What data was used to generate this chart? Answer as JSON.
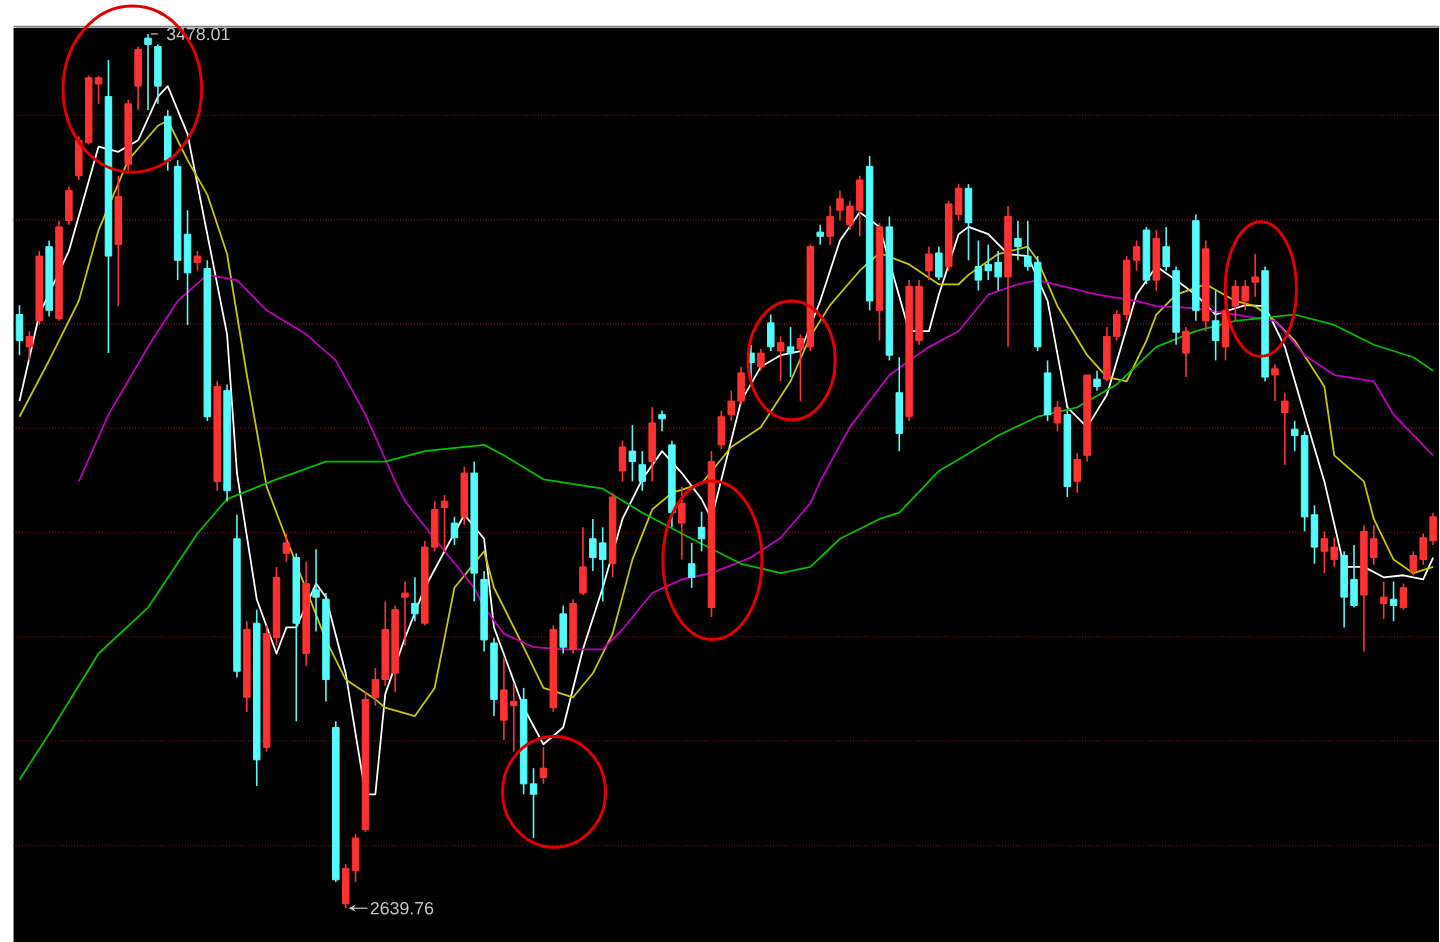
{
  "chart_data": {
    "type": "candlestick",
    "categories": [
      null,
      null,
      null,
      null,
      null,
      null,
      null,
      null,
      null,
      null,
      null,
      null,
      null,
      null,
      null,
      null,
      null,
      null,
      null,
      null,
      null,
      null,
      null,
      null,
      null,
      null,
      null,
      null,
      null,
      null,
      null,
      null,
      null,
      null,
      null,
      null,
      null,
      null,
      null,
      null,
      null,
      null,
      null,
      null,
      null,
      null,
      null,
      null,
      null,
      null,
      null,
      null,
      null,
      null,
      null,
      null,
      null,
      null,
      null,
      null,
      null,
      null,
      null,
      null,
      null,
      null,
      null,
      null,
      null,
      null,
      null,
      null,
      null,
      null,
      null,
      null,
      null,
      null,
      null,
      null,
      null,
      null,
      null,
      null,
      null,
      null,
      null,
      null,
      null,
      null,
      null,
      null,
      null,
      null,
      null,
      null,
      null,
      null,
      null,
      null,
      null,
      null,
      null,
      null,
      null,
      null,
      null,
      null,
      null,
      null,
      null,
      null,
      null,
      null,
      null,
      null,
      null,
      null,
      null,
      null,
      null,
      null,
      null,
      null,
      null,
      null,
      null,
      null,
      null,
      null,
      null,
      null,
      null,
      null,
      null,
      null,
      null,
      null,
      null,
      null,
      null,
      null,
      null,
      null
    ],
    "ohlc": [
      [
        3209,
        3218,
        3170,
        3184
      ],
      [
        3178,
        3193,
        3165,
        3188
      ],
      [
        3203,
        3270,
        3199,
        3265
      ],
      [
        3274,
        3280,
        3207,
        3213
      ],
      [
        3205,
        3299,
        3203,
        3293
      ],
      [
        3299,
        3332,
        3295,
        3328
      ],
      [
        3342,
        3380,
        3338,
        3376
      ],
      [
        3374,
        3438,
        3372,
        3436
      ],
      [
        3430,
        3438,
        3411,
        3436
      ],
      [
        3418,
        3453,
        3172,
        3265
      ],
      [
        3276,
        3342,
        3217,
        3322
      ],
      [
        3353,
        3415,
        3347,
        3411
      ],
      [
        3428,
        3466,
        3405,
        3463
      ],
      [
        3474,
        3478.01,
        3405,
        3468
      ],
      [
        3466,
        3468,
        3411,
        3428
      ],
      [
        3399,
        3405,
        3347,
        3357
      ],
      [
        3351,
        3357,
        3242,
        3261
      ],
      [
        3286,
        3309,
        3199,
        3249
      ],
      [
        3259,
        3270,
        3251,
        3265
      ],
      [
        3253,
        3261,
        3107,
        3111
      ],
      [
        3049,
        3145,
        3040,
        3140
      ],
      [
        3136,
        3142,
        3030,
        3040
      ],
      [
        2994,
        3017,
        2861,
        2867
      ],
      [
        2842,
        2915,
        2828,
        2907
      ],
      [
        2913,
        2926,
        2757,
        2782
      ],
      [
        2794,
        2911,
        2790,
        2903
      ],
      [
        2899,
        2967,
        2892,
        2957
      ],
      [
        2980,
        2999,
        2972,
        2990
      ],
      [
        2976,
        2980,
        2819,
        2913
      ],
      [
        2884,
        2972,
        2872,
        2951
      ],
      [
        2945,
        2984,
        2905,
        2938
      ],
      [
        2936,
        2942,
        2838,
        2859
      ],
      [
        2813,
        2819,
        2665,
        2667
      ],
      [
        2644,
        2682,
        2639.76,
        2678
      ],
      [
        2676,
        2711,
        2665,
        2707
      ],
      [
        2715,
        2847,
        2713,
        2840
      ],
      [
        2842,
        2870,
        2834,
        2859
      ],
      [
        2859,
        2934,
        2853,
        2907
      ],
      [
        2865,
        2930,
        2847,
        2926
      ],
      [
        2938,
        2953,
        2892,
        2942
      ],
      [
        2932,
        2957,
        2915,
        2922
      ],
      [
        2913,
        2992,
        2911,
        2986
      ],
      [
        2986,
        3030,
        2982,
        3022
      ],
      [
        3024,
        3036,
        2982,
        3030
      ],
      [
        3009,
        3015,
        2988,
        2995
      ],
      [
        3015,
        3063,
        3007,
        3057
      ],
      [
        3057,
        3068,
        2934,
        2961
      ],
      [
        2955,
        2963,
        2886,
        2897
      ],
      [
        2894,
        2899,
        2824,
        2840
      ],
      [
        2820,
        2880,
        2801,
        2849
      ],
      [
        2834,
        2855,
        2790,
        2838
      ],
      [
        2840,
        2851,
        2749,
        2759
      ],
      [
        2759,
        2774,
        2707,
        2749
      ],
      [
        2765,
        2794,
        2759,
        2774
      ],
      [
        2832,
        2911,
        2828,
        2907
      ],
      [
        2922,
        2930,
        2884,
        2890
      ],
      [
        2888,
        2936,
        2884,
        2932
      ],
      [
        2942,
        3005,
        2940,
        2967
      ],
      [
        2994,
        3013,
        2963,
        2976
      ],
      [
        2990,
        3005,
        2934,
        2974
      ],
      [
        2970,
        3038,
        2957,
        3034
      ],
      [
        3059,
        3088,
        3049,
        3082
      ],
      [
        3078,
        3103,
        3049,
        3068
      ],
      [
        3065,
        3078,
        3040,
        3049
      ],
      [
        3068,
        3120,
        3049,
        3105
      ],
      [
        3113,
        3117,
        3097,
        3109
      ],
      [
        3084,
        3088,
        3005,
        3019
      ],
      [
        3009,
        3044,
        2974,
        3028
      ],
      [
        2970,
        2990,
        2947,
        2957
      ],
      [
        3005,
        3020,
        2982,
        2994
      ],
      [
        2928,
        3078,
        2919,
        3068
      ],
      [
        3084,
        3117,
        3080,
        3111
      ],
      [
        3113,
        3136,
        3107,
        3126
      ],
      [
        3126,
        3159,
        3122,
        3153
      ],
      [
        3172,
        3180,
        3145,
        3163
      ],
      [
        3159,
        3176,
        3155,
        3172
      ],
      [
        3201,
        3209,
        3174,
        3178
      ],
      [
        3174,
        3188,
        3145,
        3182
      ],
      [
        3178,
        3197,
        3149,
        3172
      ],
      [
        3176,
        3190,
        3126,
        3186
      ],
      [
        3178,
        3276,
        3174,
        3274
      ],
      [
        3288,
        3295,
        3276,
        3284
      ],
      [
        3284,
        3313,
        3276,
        3303
      ],
      [
        3309,
        3328,
        3299,
        3320
      ],
      [
        3295,
        3318,
        3290,
        3313
      ],
      [
        3309,
        3342,
        3284,
        3338
      ],
      [
        3351,
        3361,
        3213,
        3222
      ],
      [
        3213,
        3297,
        3184,
        3293
      ],
      [
        3293,
        3303,
        3165,
        3170
      ],
      [
        3134,
        3168,
        3078,
        3095
      ],
      [
        3111,
        3242,
        3107,
        3236
      ],
      [
        3184,
        3242,
        3180,
        3236
      ],
      [
        3251,
        3274,
        3242,
        3267
      ],
      [
        3268,
        3274,
        3242,
        3245
      ],
      [
        3255,
        3318,
        3251,
        3315
      ],
      [
        3305,
        3334,
        3299,
        3330
      ],
      [
        3330,
        3334,
        3261,
        3297
      ],
      [
        3255,
        3280,
        3232,
        3242
      ],
      [
        3257,
        3276,
        3242,
        3251
      ],
      [
        3259,
        3270,
        3232,
        3245
      ],
      [
        3245,
        3313,
        3178,
        3303
      ],
      [
        3282,
        3299,
        3261,
        3274
      ],
      [
        3265,
        3299,
        3251,
        3255
      ],
      [
        3259,
        3265,
        3174,
        3178
      ],
      [
        3153,
        3165,
        3107,
        3113
      ],
      [
        3105,
        3126,
        3097,
        3120
      ],
      [
        3113,
        3117,
        3034,
        3044
      ],
      [
        3049,
        3076,
        3038,
        3070
      ],
      [
        3074,
        3151,
        3068,
        3151
      ],
      [
        3147,
        3155,
        3136,
        3140
      ],
      [
        3147,
        3197,
        3145,
        3188
      ],
      [
        3188,
        3213,
        3184,
        3209
      ],
      [
        3209,
        3265,
        3203,
        3261
      ],
      [
        3261,
        3280,
        3251,
        3274
      ],
      [
        3290,
        3293,
        3238,
        3242
      ],
      [
        3242,
        3290,
        3232,
        3282
      ],
      [
        3274,
        3293,
        3251,
        3255
      ],
      [
        3251,
        3255,
        3180,
        3192
      ],
      [
        3172,
        3197,
        3149,
        3193
      ],
      [
        3299,
        3305,
        3203,
        3213
      ],
      [
        3203,
        3280,
        3193,
        3272
      ],
      [
        3203,
        3232,
        3165,
        3184
      ],
      [
        3178,
        3222,
        3165,
        3213
      ],
      [
        3217,
        3242,
        3203,
        3236
      ],
      [
        3222,
        3242,
        3213,
        3236
      ],
      [
        3240,
        3267,
        3226,
        3245
      ],
      [
        3251,
        3255,
        3145,
        3149
      ],
      [
        3151,
        3161,
        3126,
        3157
      ],
      [
        3115,
        3134,
        3065,
        3126
      ],
      [
        3099,
        3107,
        3078,
        3093
      ],
      [
        3093,
        3097,
        3001,
        3015
      ],
      [
        3017,
        3026,
        2970,
        2986
      ],
      [
        2982,
        3001,
        2961,
        2994
      ],
      [
        2974,
        2995,
        2967,
        2986
      ],
      [
        2978,
        2982,
        2909,
        2938
      ],
      [
        2955,
        2988,
        2928,
        2930
      ],
      [
        2940,
        3007,
        2886,
        3001
      ],
      [
        2976,
        3007,
        2969,
        2994
      ],
      [
        2932,
        2953,
        2917,
        2938
      ],
      [
        2936,
        2953,
        2915,
        2930
      ],
      [
        2928,
        2951,
        2926,
        2947
      ],
      [
        2963,
        2982,
        2959,
        2978
      ],
      [
        2974,
        2999,
        2969,
        2995
      ],
      [
        2992,
        3019,
        2988,
        3015
      ]
    ],
    "series": [
      {
        "type": "line",
        "color": "#ffffff",
        "values": [
          3126,
          null,
          3209,
          null,
          null,
          3270,
          null,
          null,
          3370,
          null,
          3365,
          null,
          3376,
          null,
          3418,
          3428,
          null,
          3382,
          null,
          3286,
          null,
          3190,
          3057,
          null,
          2936,
          null,
          2884,
          2909,
          2909,
          null,
          2951,
          2938,
          null,
          2865,
          null,
          2749,
          2749,
          2845,
          null,
          2899,
          null,
          2947,
          null,
          null,
          null,
          3017,
          null,
          2994,
          2909,
          null,
          null,
          2832,
          null,
          2797,
          null,
          2813,
          null,
          2888,
          null,
          2947,
          null,
          3013,
          null,
          3051,
          null,
          3078,
          null,
          3057,
          null,
          3032,
          3013,
          null,
          null,
          3126,
          null,
          3159,
          null,
          3170,
          null,
          3174,
          null,
          3222,
          null,
          3280,
          null,
          3307,
          null,
          3293,
          null,
          null,
          3193,
          null,
          3193,
          3228,
          null,
          3286,
          3293,
          null,
          3286,
          null,
          3267,
          null,
          3265,
          null,
          3222,
          null,
          3120,
          null,
          3101,
          null,
          3132,
          null,
          null,
          3228,
          null,
          3255,
          null,
          3242,
          null,
          3228,
          null,
          3209,
          null,
          null,
          3218,
          null,
          3217,
          null,
          3178,
          null,
          3113,
          null,
          3049,
          null,
          2967,
          null,
          2967,
          null,
          2957,
          null,
          2959,
          null,
          2955,
          2976
        ]
      },
      {
        "type": "line",
        "color": "#c8c800",
        "values": [
          3111,
          null,
          null,
          3165,
          null,
          null,
          3222,
          null,
          3290,
          null,
          null,
          3357,
          null,
          null,
          3390,
          3395,
          null,
          3357,
          null,
          3324,
          null,
          3267,
          null,
          3151,
          null,
          3044,
          null,
          2994,
          null,
          null,
          null,
          2897,
          null,
          2859,
          null,
          null,
          2840,
          2832,
          null,
          null,
          2824,
          null,
          2851,
          null,
          2947,
          null,
          null,
          2982,
          2947,
          null,
          null,
          2890,
          null,
          2851,
          null,
          null,
          2842,
          null,
          2865,
          null,
          2903,
          null,
          2974,
          null,
          3022,
          null,
          3038,
          null,
          null,
          3047,
          null,
          null,
          3082,
          null,
          null,
          3101,
          null,
          null,
          3145,
          null,
          3188,
          null,
          3218,
          null,
          null,
          3251,
          null,
          3268,
          null,
          null,
          3257,
          null,
          null,
          3238,
          null,
          3238,
          3247,
          null,
          null,
          3267,
          null,
          null,
          3274,
          3261,
          null,
          3217,
          null,
          null,
          3170,
          null,
          3149,
          null,
          3145,
          null,
          3184,
          3209,
          null,
          3228,
          null,
          null,
          3238,
          null,
          null,
          3222,
          null,
          3217,
          null,
          3203,
          null,
          3184,
          null,
          null,
          3140,
          3074,
          null,
          null,
          3049,
          3013,
          null,
          2974,
          null,
          2961,
          null,
          2967
        ]
      },
      {
        "type": "line",
        "color": "#c000c0",
        "values": [
          null,
          null,
          null,
          null,
          null,
          null,
          3049,
          null,
          null,
          3113,
          null,
          null,
          null,
          3178,
          null,
          null,
          3222,
          null,
          null,
          3247,
          null,
          null,
          3242,
          null,
          null,
          3213,
          null,
          null,
          null,
          3190,
          null,
          null,
          3165,
          null,
          null,
          3113,
          null,
          null,
          3049,
          3030,
          null,
          null,
          2994,
          null,
          null,
          null,
          2947,
          2928,
          null,
          2903,
          null,
          null,
          2890,
          null,
          null,
          2888,
          null,
          null,
          null,
          2888,
          null,
          2907,
          null,
          null,
          2942,
          null,
          null,
          2955,
          null,
          null,
          2961,
          null,
          null,
          null,
          2976,
          null,
          null,
          2995,
          null,
          null,
          3028,
          3049,
          null,
          null,
          3101,
          null,
          null,
          null,
          3151,
          null,
          null,
          null,
          3178,
          null,
          null,
          3193,
          null,
          null,
          3228,
          null,
          null,
          3238,
          null,
          3242,
          null,
          null,
          null,
          null,
          null,
          3228,
          null,
          null,
          null,
          3222,
          null,
          3217,
          null,
          null,
          null,
          3215,
          null,
          null,
          null,
          3209,
          null,
          null,
          null,
          3203,
          null,
          null,
          3170,
          null,
          null,
          3151,
          null,
          null,
          null,
          3145,
          null,
          3113,
          null,
          null,
          null,
          3074
        ]
      },
      {
        "type": "line",
        "color": "#00c000",
        "values": [
          2763,
          null,
          null,
          2807,
          null,
          null,
          null,
          null,
          2884,
          null,
          null,
          null,
          null,
          2928,
          null,
          null,
          null,
          null,
          2999,
          null,
          null,
          3032,
          null,
          null,
          null,
          null,
          3051,
          null,
          null,
          null,
          null,
          3068,
          null,
          null,
          null,
          null,
          null,
          3068,
          null,
          null,
          null,
          3078,
          null,
          null,
          null,
          null,
          null,
          3084,
          null,
          3074,
          null,
          null,
          null,
          3051,
          null,
          null,
          null,
          null,
          null,
          3042,
          null,
          null,
          null,
          3019,
          null,
          null,
          null,
          null,
          2994,
          null,
          null,
          null,
          null,
          2970,
          null,
          null,
          null,
          2961,
          null,
          null,
          2967,
          null,
          null,
          2994,
          null,
          null,
          null,
          3013,
          null,
          3019,
          null,
          null,
          null,
          3059,
          null,
          3070,
          null,
          null,
          null,
          3093,
          null,
          null,
          null,
          3111,
          null,
          null,
          null,
          3120,
          null,
          null,
          null,
          3142,
          null,
          null,
          null,
          3178,
          null,
          null,
          null,
          3193,
          null,
          null,
          null,
          3203,
          null,
          null,
          null,
          null,
          null,
          3209,
          null,
          null,
          null,
          3199,
          null,
          null,
          null,
          3180,
          null,
          null,
          null,
          3168,
          null,
          3155
        ]
      }
    ],
    "ylim": [
      2607,
      3484
    ],
    "yticks": [
      {
        "value": 2700,
        "label": null
      },
      {
        "value": 2800,
        "label": null
      },
      {
        "value": 2900,
        "label": null
      },
      {
        "value": 3000,
        "label": null
      },
      {
        "value": 3100,
        "label": null
      },
      {
        "value": 3200,
        "label": null
      },
      {
        "value": 3300,
        "label": null
      },
      {
        "value": 3400,
        "label": null
      }
    ],
    "grid": "y",
    "annotations": [
      "3478.01",
      "2639.76"
    ]
  }
}
